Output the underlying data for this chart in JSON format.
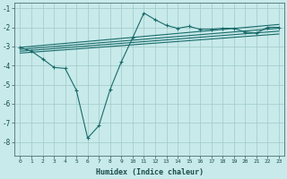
{
  "xlabel": "Humidex (Indice chaleur)",
  "background_color": "#c8eaea",
  "line_color": "#1a6b6b",
  "grid_color": "#a0c8c8",
  "xlim": [
    -0.5,
    23.5
  ],
  "ylim": [
    -8.7,
    -0.7
  ],
  "yticks": [
    -8,
    -7,
    -6,
    -5,
    -4,
    -3,
    -2,
    -1
  ],
  "xticks": [
    0,
    1,
    2,
    3,
    4,
    5,
    6,
    7,
    8,
    9,
    10,
    11,
    12,
    13,
    14,
    15,
    16,
    17,
    18,
    19,
    20,
    21,
    22,
    23
  ],
  "main_line_x": [
    0,
    1,
    2,
    3,
    4,
    5,
    6,
    7,
    8,
    9,
    10,
    11,
    12,
    13,
    14,
    15,
    16,
    17,
    18,
    19,
    20,
    21,
    22,
    23
  ],
  "main_line_y": [
    -3.05,
    -3.25,
    -3.65,
    -4.1,
    -4.15,
    -5.3,
    -7.8,
    -7.15,
    -5.25,
    -3.8,
    -2.55,
    -1.25,
    -1.6,
    -1.9,
    -2.05,
    -1.95,
    -2.1,
    -2.1,
    -2.05,
    -2.05,
    -2.25,
    -2.3,
    -2.0,
    -2.0
  ],
  "reg_lines": [
    {
      "x0": 0,
      "y0": -3.05,
      "x1": 23,
      "y1": -1.85
    },
    {
      "x0": 0,
      "y0": -3.15,
      "x1": 23,
      "y1": -2.05
    },
    {
      "x0": 0,
      "y0": -3.25,
      "x1": 23,
      "y1": -2.2
    },
    {
      "x0": 0,
      "y0": -3.35,
      "x1": 23,
      "y1": -2.35
    }
  ]
}
